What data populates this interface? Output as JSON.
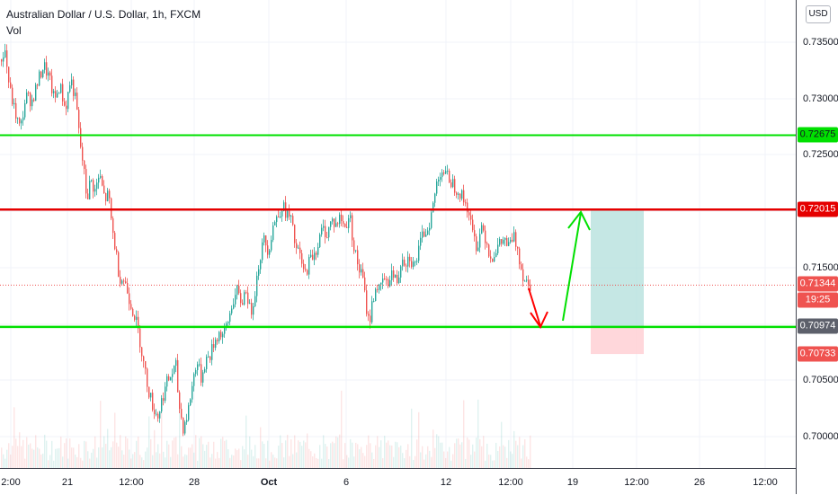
{
  "header": {
    "title": "Australian Dollar / U.S. Dollar, 1h, FXCM",
    "volume_label": "Vol"
  },
  "currency_button": "USD",
  "price_axis": {
    "ticks": [
      "0.73500",
      "0.73000",
      "0.72500",
      "0.71500",
      "0.70500",
      "0.70000"
    ]
  },
  "price_tags": {
    "upper_green": "0.72675",
    "red_level": "0.72015",
    "last_price": "0.71344",
    "countdown": "19:25",
    "lower_green": "0.70974",
    "stop": "0.70733"
  },
  "time_axis": {
    "ticks": [
      "2:00",
      "21",
      "12:00",
      "28",
      "Oct",
      "6",
      "12",
      "12:00",
      "19",
      "12:00",
      "26",
      "12:00"
    ]
  },
  "colors": {
    "up": "#26a69a",
    "down": "#ef5350",
    "green_line": "#00e000",
    "red_line": "#e50000",
    "target_zone": "#b2dfdb",
    "stop_zone": "#ffcdd2"
  },
  "chart_data": {
    "type": "candlestick",
    "title": "Australian Dollar / U.S. Dollar, 1h, FXCM",
    "y_range": [
      0.6976,
      0.7374
    ],
    "horizontal_levels": [
      0.72675,
      0.72015,
      0.70974
    ],
    "current_price": 0.71344,
    "trade_setup": {
      "entry": 0.70974,
      "target": 0.72015,
      "stop": 0.70733
    },
    "price_path": [
      [
        0,
        0.7335
      ],
      [
        5,
        0.7342
      ],
      [
        10,
        0.7308
      ],
      [
        16,
        0.7288
      ],
      [
        22,
        0.7272
      ],
      [
        28,
        0.7302
      ],
      [
        35,
        0.7298
      ],
      [
        42,
        0.7316
      ],
      [
        48,
        0.733
      ],
      [
        54,
        0.7318
      ],
      [
        60,
        0.7298
      ],
      [
        66,
        0.7312
      ],
      [
        72,
        0.729
      ],
      [
        78,
        0.7318
      ],
      [
        84,
        0.7296
      ],
      [
        88,
        0.7262
      ],
      [
        92,
        0.724
      ],
      [
        96,
        0.721
      ],
      [
        100,
        0.7228
      ],
      [
        105,
        0.7218
      ],
      [
        110,
        0.7232
      ],
      [
        116,
        0.721
      ],
      [
        120,
        0.7215
      ],
      [
        124,
        0.7185
      ],
      [
        128,
        0.7165
      ],
      [
        132,
        0.7142
      ],
      [
        138,
        0.7138
      ],
      [
        144,
        0.712
      ],
      [
        150,
        0.7105
      ],
      [
        155,
        0.7085
      ],
      [
        160,
        0.706
      ],
      [
        165,
        0.704
      ],
      [
        170,
        0.7025
      ],
      [
        175,
        0.7018
      ],
      [
        180,
        0.7035
      ],
      [
        185,
        0.7048
      ],
      [
        190,
        0.7055
      ],
      [
        195,
        0.7062
      ],
      [
        198,
        0.703
      ],
      [
        203,
        0.7008
      ],
      [
        208,
        0.702
      ],
      [
        213,
        0.7045
      ],
      [
        218,
        0.7068
      ],
      [
        223,
        0.7052
      ],
      [
        228,
        0.7068
      ],
      [
        233,
        0.7072
      ],
      [
        238,
        0.7085
      ],
      [
        243,
        0.7092
      ],
      [
        248,
        0.709
      ],
      [
        253,
        0.7102
      ],
      [
        258,
        0.712
      ],
      [
        263,
        0.7128
      ],
      [
        268,
        0.7118
      ],
      [
        273,
        0.7132
      ],
      [
        278,
        0.7108
      ],
      [
        283,
        0.713
      ],
      [
        288,
        0.7158
      ],
      [
        293,
        0.7175
      ],
      [
        298,
        0.7165
      ],
      [
        303,
        0.7188
      ],
      [
        308,
        0.7195
      ],
      [
        313,
        0.7205
      ],
      [
        318,
        0.7198
      ],
      [
        323,
        0.7192
      ],
      [
        328,
        0.7168
      ],
      [
        333,
        0.716
      ],
      [
        338,
        0.7142
      ],
      [
        343,
        0.7155
      ],
      [
        348,
        0.7162
      ],
      [
        353,
        0.717
      ],
      [
        358,
        0.7185
      ],
      [
        363,
        0.718
      ],
      [
        368,
        0.7192
      ],
      [
        373,
        0.7188
      ],
      [
        378,
        0.7195
      ],
      [
        383,
        0.7185
      ],
      [
        388,
        0.7198
      ],
      [
        393,
        0.7168
      ],
      [
        398,
        0.715
      ],
      [
        403,
        0.714
      ],
      [
        406,
        0.7118
      ],
      [
        410,
        0.71
      ],
      [
        414,
        0.7122
      ],
      [
        418,
        0.7135
      ],
      [
        422,
        0.7128
      ],
      [
        426,
        0.7142
      ],
      [
        430,
        0.7132
      ],
      [
        434,
        0.7148
      ],
      [
        438,
        0.714
      ],
      [
        442,
        0.7138
      ],
      [
        446,
        0.7162
      ],
      [
        450,
        0.7155
      ],
      [
        455,
        0.716
      ],
      [
        460,
        0.715
      ],
      [
        465,
        0.7165
      ],
      [
        470,
        0.718
      ],
      [
        475,
        0.7185
      ],
      [
        480,
        0.72
      ],
      [
        485,
        0.7225
      ],
      [
        490,
        0.7238
      ],
      [
        495,
        0.7232
      ],
      [
        500,
        0.7228
      ],
      [
        505,
        0.7222
      ],
      [
        510,
        0.7218
      ],
      [
        515,
        0.721
      ],
      [
        520,
        0.7202
      ],
      [
        525,
        0.718
      ],
      [
        530,
        0.7168
      ],
      [
        535,
        0.7188
      ],
      [
        540,
        0.7175
      ],
      [
        545,
        0.7158
      ],
      [
        550,
        0.7165
      ],
      [
        555,
        0.717
      ],
      [
        560,
        0.7175
      ],
      [
        565,
        0.7168
      ],
      [
        570,
        0.7178
      ],
      [
        575,
        0.7168
      ],
      [
        580,
        0.7145
      ],
      [
        585,
        0.7138
      ],
      [
        590,
        0.7134
      ]
    ]
  }
}
